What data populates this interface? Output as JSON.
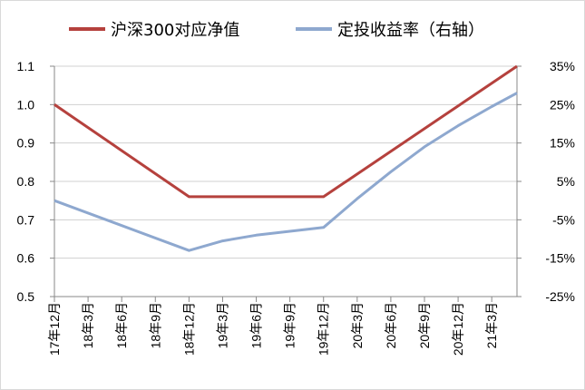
{
  "chart_data": {
    "type": "line",
    "title": "",
    "xlabel": "",
    "ylabel": "",
    "categories": [
      "17年12月",
      "18年3月",
      "18年6月",
      "18年9月",
      "18年12月",
      "19年3月",
      "19年6月",
      "19年9月",
      "19年12月",
      "20年3月",
      "20年6月",
      "20年9月",
      "20年12月",
      "21年3月"
    ],
    "y_left": {
      "ticks": [
        "0.5",
        "0.6",
        "0.7",
        "0.8",
        "0.9",
        "1.0",
        "1.1"
      ],
      "range": [
        0.5,
        1.1
      ]
    },
    "y_right": {
      "ticks": [
        "-25%",
        "-15%",
        "-5%",
        "5%",
        "15%",
        "25%",
        "35%"
      ],
      "range": [
        -25,
        35
      ]
    },
    "legend_position": "top",
    "grid": "horizontal",
    "series": [
      {
        "name": "沪深300对应净值",
        "axis": "left",
        "color": "#b5413d",
        "points": [
          [
            0,
            1.0
          ],
          [
            4,
            0.76
          ],
          [
            8,
            0.76
          ],
          [
            13.75,
            1.1
          ]
        ]
      },
      {
        "name": "定投收益率（右轴）",
        "axis": "right",
        "color": "#8ea8cf",
        "points": [
          [
            0,
            0.0
          ],
          [
            4,
            -13.0
          ],
          [
            5,
            -10.5
          ],
          [
            6,
            -9.0
          ],
          [
            7,
            -8.0
          ],
          [
            8,
            -7.0
          ],
          [
            9,
            0.5
          ],
          [
            10,
            7.5
          ],
          [
            11,
            14.0
          ],
          [
            12,
            19.5
          ],
          [
            13,
            24.5
          ],
          [
            13.75,
            28.0
          ]
        ]
      }
    ]
  }
}
